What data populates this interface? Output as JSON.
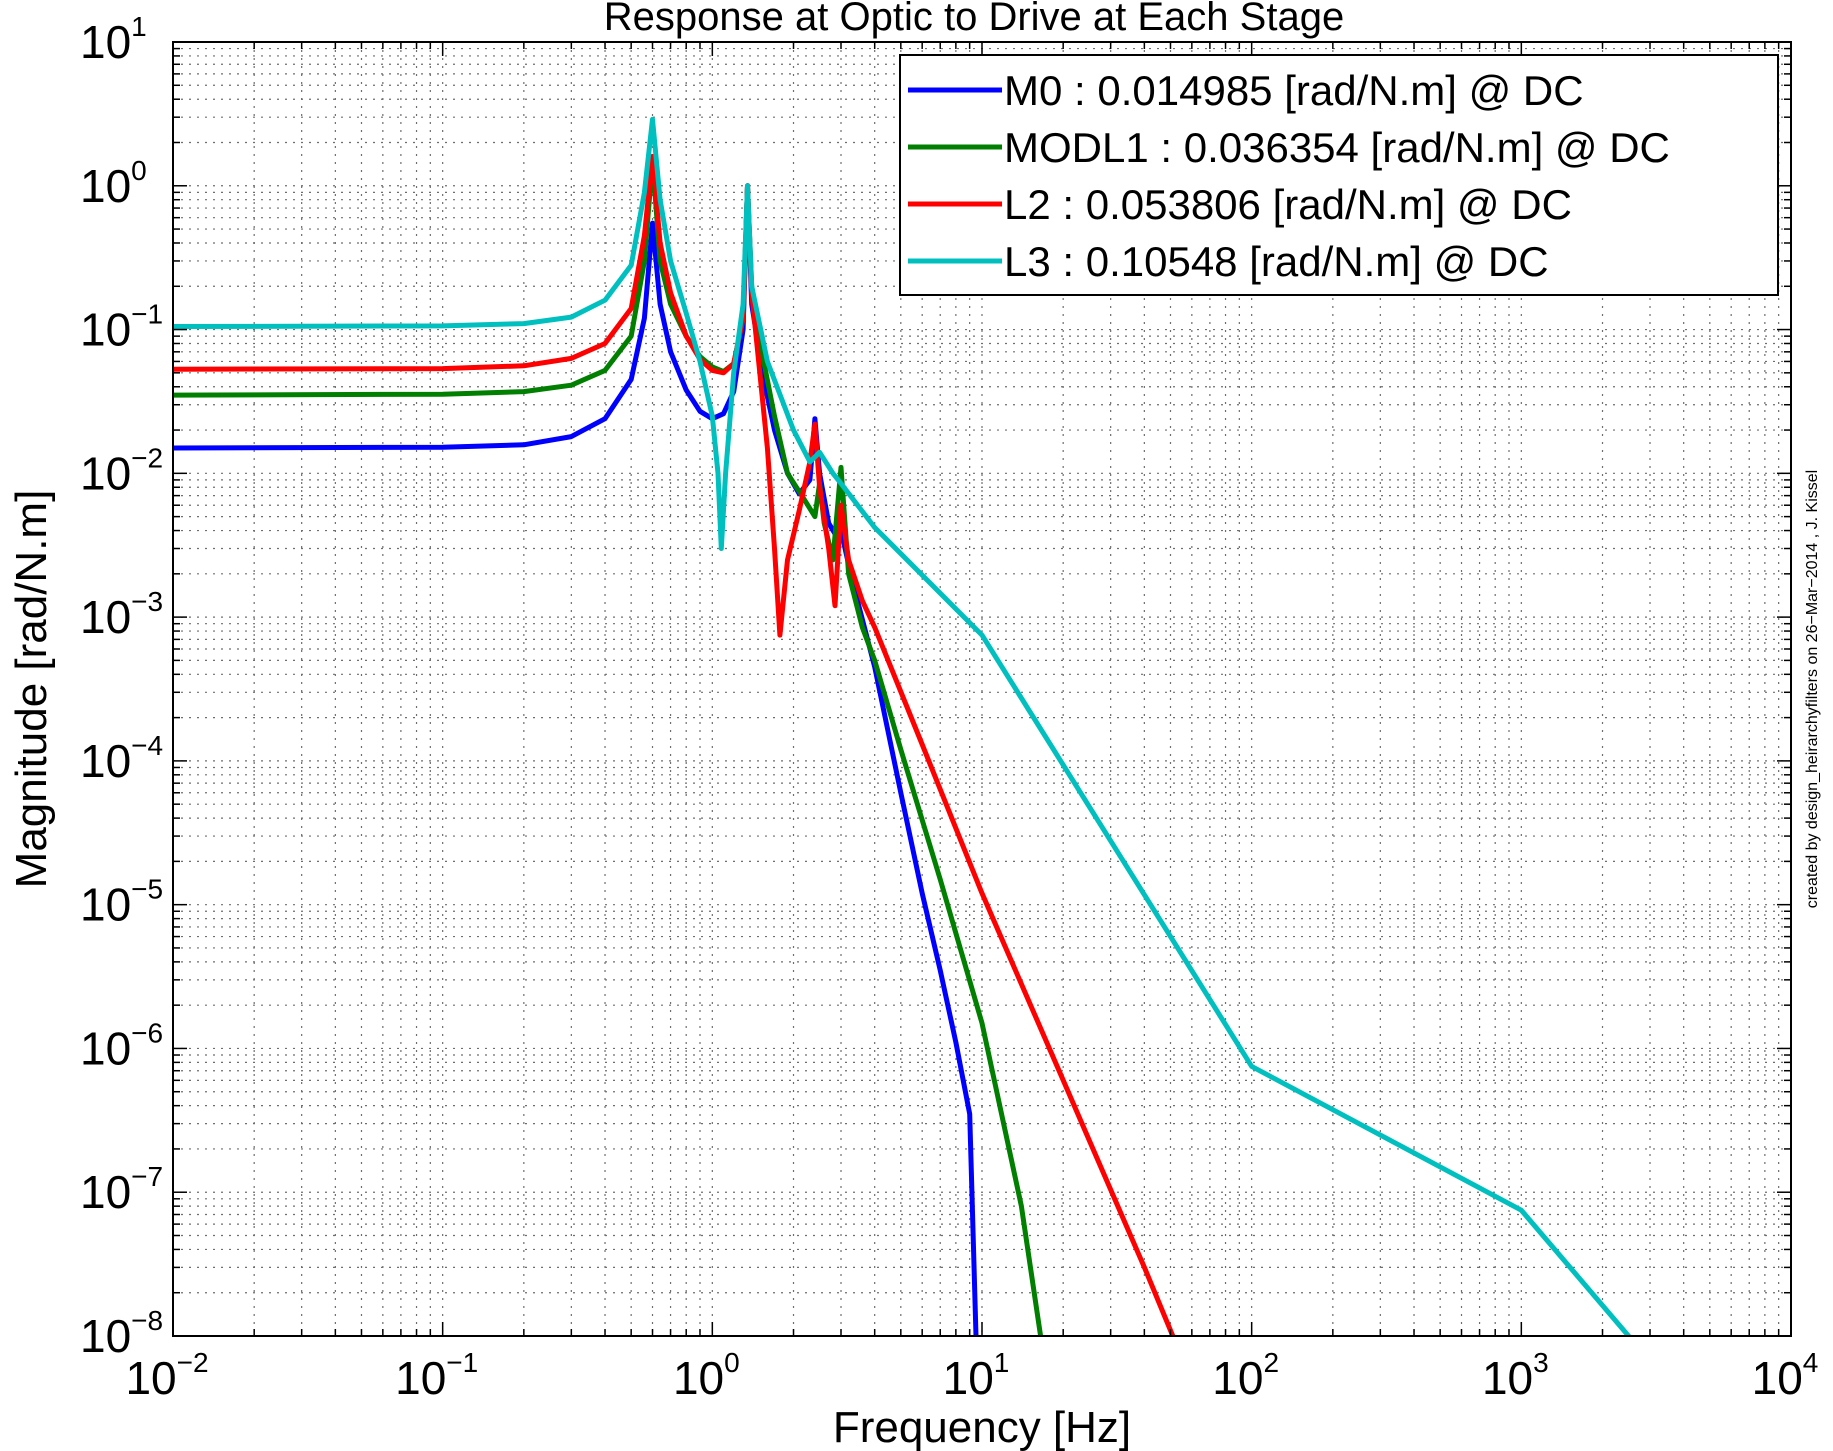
{
  "chart_data": {
    "type": "line",
    "title": "Response at Optic to Drive at Each Stage",
    "xlabel": "Frequency [Hz]",
    "ylabel": "Magnitude [rad/N.m]",
    "xscale": "log",
    "yscale": "log",
    "xlim": [
      0.01,
      10000
    ],
    "ylim": [
      1e-08,
      10
    ],
    "grid": true,
    "legend_position": "top-right",
    "x_ticks": [
      {
        "base": "10",
        "exp": "−2",
        "value": 0.01
      },
      {
        "base": "10",
        "exp": "−1",
        "value": 0.1
      },
      {
        "base": "10",
        "exp": "0",
        "value": 1
      },
      {
        "base": "10",
        "exp": "1",
        "value": 10
      },
      {
        "base": "10",
        "exp": "2",
        "value": 100
      },
      {
        "base": "10",
        "exp": "3",
        "value": 1000
      },
      {
        "base": "10",
        "exp": "4",
        "value": 10000
      }
    ],
    "y_ticks": [
      {
        "base": "10",
        "exp": "1",
        "value": 10
      },
      {
        "base": "10",
        "exp": "0",
        "value": 1
      },
      {
        "base": "10",
        "exp": "−1",
        "value": 0.1
      },
      {
        "base": "10",
        "exp": "−2",
        "value": 0.01
      },
      {
        "base": "10",
        "exp": "−3",
        "value": 0.001
      },
      {
        "base": "10",
        "exp": "−4",
        "value": 0.0001
      },
      {
        "base": "10",
        "exp": "−5",
        "value": 1e-05
      },
      {
        "base": "10",
        "exp": "−6",
        "value": 1e-06
      },
      {
        "base": "10",
        "exp": "−7",
        "value": 1e-07
      },
      {
        "base": "10",
        "exp": "−8",
        "value": 1e-08
      }
    ],
    "series": [
      {
        "name": "M0 : 0.014985 [rad/N.m] @ DC",
        "color": "#0000ff",
        "points": [
          [
            0.01,
            0.015
          ],
          [
            0.1,
            0.0152
          ],
          [
            0.2,
            0.0158
          ],
          [
            0.3,
            0.018
          ],
          [
            0.4,
            0.024
          ],
          [
            0.5,
            0.045
          ],
          [
            0.56,
            0.12
          ],
          [
            0.6,
            0.55
          ],
          [
            0.64,
            0.15
          ],
          [
            0.7,
            0.07
          ],
          [
            0.8,
            0.038
          ],
          [
            0.9,
            0.027
          ],
          [
            1.0,
            0.024
          ],
          [
            1.1,
            0.026
          ],
          [
            1.2,
            0.037
          ],
          [
            1.3,
            0.1
          ],
          [
            1.35,
            1.0
          ],
          [
            1.4,
            0.15
          ],
          [
            1.55,
            0.045
          ],
          [
            1.7,
            0.02
          ],
          [
            1.9,
            0.01
          ],
          [
            2.1,
            0.0072
          ],
          [
            2.3,
            0.009
          ],
          [
            2.4,
            0.024
          ],
          [
            2.5,
            0.01
          ],
          [
            2.7,
            0.0045
          ],
          [
            2.85,
            0.0038
          ],
          [
            3.0,
            0.004
          ],
          [
            3.3,
            0.0018
          ],
          [
            4.0,
            0.00045
          ],
          [
            5.0,
            6e-05
          ],
          [
            6.0,
            1.2e-05
          ],
          [
            7.0,
            3.5e-06
          ],
          [
            8.0,
            1.1e-06
          ],
          [
            9.0,
            3.5e-07
          ],
          [
            9.5,
            1e-08
          ]
        ]
      },
      {
        "name": "MODL1 : 0.036354 [rad/N.m] @ DC",
        "color": "#007f00",
        "points": [
          [
            0.01,
            0.035
          ],
          [
            0.1,
            0.0355
          ],
          [
            0.2,
            0.037
          ],
          [
            0.3,
            0.041
          ],
          [
            0.4,
            0.052
          ],
          [
            0.5,
            0.09
          ],
          [
            0.56,
            0.3
          ],
          [
            0.6,
            1.5
          ],
          [
            0.64,
            0.3
          ],
          [
            0.7,
            0.15
          ],
          [
            0.8,
            0.09
          ],
          [
            0.9,
            0.065
          ],
          [
            1.0,
            0.055
          ],
          [
            1.1,
            0.051
          ],
          [
            1.2,
            0.058
          ],
          [
            1.3,
            0.12
          ],
          [
            1.35,
            1.0
          ],
          [
            1.4,
            0.2
          ],
          [
            1.55,
            0.06
          ],
          [
            1.7,
            0.025
          ],
          [
            1.9,
            0.01
          ],
          [
            2.2,
            0.0065
          ],
          [
            2.4,
            0.005
          ],
          [
            2.5,
            0.0085
          ],
          [
            2.6,
            0.0045
          ],
          [
            2.8,
            0.0025
          ],
          [
            3.0,
            0.011
          ],
          [
            3.2,
            0.002
          ],
          [
            3.6,
            0.00085
          ],
          [
            4.0,
            0.0005
          ],
          [
            5.0,
            0.00012
          ],
          [
            7.0,
            1.5e-05
          ],
          [
            10.0,
            1.5e-06
          ],
          [
            14.0,
            8e-08
          ],
          [
            16.5,
            1e-08
          ]
        ]
      },
      {
        "name": "L2 : 0.053806 [rad/N.m] @ DC",
        "color": "#ff0000",
        "points": [
          [
            0.01,
            0.053
          ],
          [
            0.1,
            0.0535
          ],
          [
            0.2,
            0.056
          ],
          [
            0.3,
            0.063
          ],
          [
            0.4,
            0.08
          ],
          [
            0.5,
            0.14
          ],
          [
            0.56,
            0.45
          ],
          [
            0.6,
            1.6
          ],
          [
            0.64,
            0.4
          ],
          [
            0.7,
            0.18
          ],
          [
            0.8,
            0.09
          ],
          [
            0.9,
            0.062
          ],
          [
            1.0,
            0.052
          ],
          [
            1.1,
            0.05
          ],
          [
            1.2,
            0.058
          ],
          [
            1.3,
            0.12
          ],
          [
            1.35,
            1.0
          ],
          [
            1.4,
            0.18
          ],
          [
            1.5,
            0.05
          ],
          [
            1.6,
            0.015
          ],
          [
            1.7,
            0.003
          ],
          [
            1.78,
            0.00075
          ],
          [
            1.9,
            0.0025
          ],
          [
            2.1,
            0.0055
          ],
          [
            2.3,
            0.012
          ],
          [
            2.4,
            0.022
          ],
          [
            2.5,
            0.008
          ],
          [
            2.7,
            0.003
          ],
          [
            2.85,
            0.0012
          ],
          [
            3.0,
            0.006
          ],
          [
            3.2,
            0.0025
          ],
          [
            3.6,
            0.0013
          ],
          [
            4.0,
            0.00085
          ],
          [
            6.0,
            0.00013
          ],
          [
            10.0,
            1.2e-05
          ],
          [
            20.0,
            6e-07
          ],
          [
            40.0,
            3e-08
          ],
          [
            51.0,
            1e-08
          ]
        ]
      },
      {
        "name": "L3 : 0.10548 [rad/N.m] @ DC",
        "color": "#00bfbf",
        "points": [
          [
            0.01,
            0.105
          ],
          [
            0.1,
            0.106
          ],
          [
            0.2,
            0.11
          ],
          [
            0.3,
            0.122
          ],
          [
            0.4,
            0.16
          ],
          [
            0.5,
            0.28
          ],
          [
            0.56,
            0.9
          ],
          [
            0.6,
            2.9
          ],
          [
            0.64,
            0.8
          ],
          [
            0.7,
            0.3
          ],
          [
            0.8,
            0.13
          ],
          [
            0.9,
            0.06
          ],
          [
            1.0,
            0.025
          ],
          [
            1.05,
            0.01
          ],
          [
            1.08,
            0.003
          ],
          [
            1.12,
            0.01
          ],
          [
            1.2,
            0.05
          ],
          [
            1.3,
            0.15
          ],
          [
            1.35,
            1.0
          ],
          [
            1.4,
            0.2
          ],
          [
            1.6,
            0.06
          ],
          [
            2.0,
            0.02
          ],
          [
            2.3,
            0.012
          ],
          [
            2.5,
            0.014
          ],
          [
            2.8,
            0.01
          ],
          [
            3.0,
            0.0085
          ],
          [
            4.0,
            0.0042
          ],
          [
            10.0,
            0.00075
          ],
          [
            100.0,
            7.5e-07
          ],
          [
            1000.0,
            7.5e-08
          ],
          [
            2500.0,
            1e-08
          ]
        ]
      }
    ]
  },
  "credit": "created by design_heirarchyfilters on 26−Mar−2014 , J. Kissel"
}
